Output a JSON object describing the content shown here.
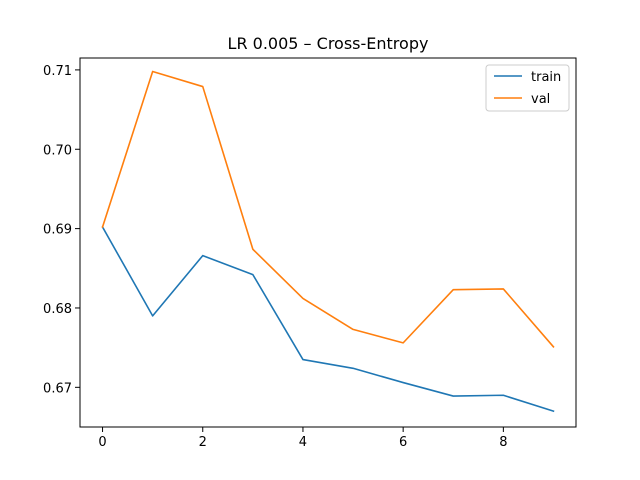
{
  "chart_data": {
    "type": "line",
    "title": "LR 0.005 – Cross-Entropy",
    "xlabel": "",
    "ylabel": "",
    "x": [
      0,
      1,
      2,
      3,
      4,
      5,
      6,
      7,
      8,
      9
    ],
    "xlim": [
      -0.45,
      9.45
    ],
    "ylim": [
      0.665,
      0.7115
    ],
    "xticks": [
      0,
      2,
      4,
      6,
      8
    ],
    "yticks": [
      0.67,
      0.68,
      0.69,
      0.7,
      0.71
    ],
    "ytick_labels": [
      "0.67",
      "0.68",
      "0.69",
      "0.70",
      "0.71"
    ],
    "xtick_labels": [
      "0",
      "2",
      "4",
      "6",
      "8"
    ],
    "grid": false,
    "legend_position": "top-right",
    "series": [
      {
        "name": "train",
        "color": "#1f77b4",
        "values": [
          0.6902,
          0.679,
          0.6866,
          0.6842,
          0.6735,
          0.6724,
          0.6706,
          0.6689,
          0.669,
          0.667
        ]
      },
      {
        "name": "val",
        "color": "#ff7f0e",
        "values": [
          0.6902,
          0.7098,
          0.7079,
          0.6874,
          0.6812,
          0.6773,
          0.6756,
          0.6823,
          0.6824,
          0.6751
        ]
      }
    ]
  }
}
